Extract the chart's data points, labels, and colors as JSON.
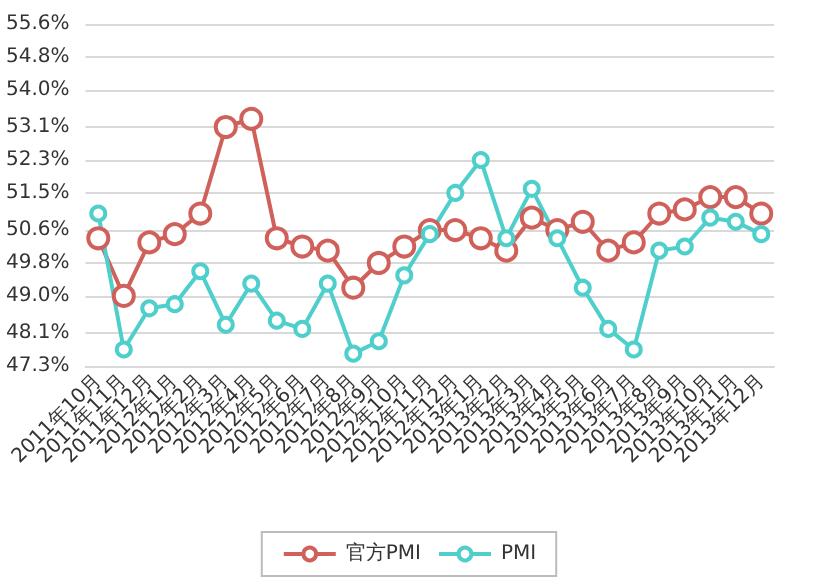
{
  "chart_data": {
    "type": "line",
    "categories": [
      "2011年10月",
      "2011年11月",
      "2011年12月",
      "2012年1月",
      "2012年2月",
      "2012年3月",
      "2012年4月",
      "2012年5月",
      "2012年6月",
      "2012年7月",
      "2012年8月",
      "2012年9月",
      "2012年10月",
      "2012年11月",
      "2012年12月",
      "2013年1月",
      "2013年2月",
      "2013年3月",
      "2013年4月",
      "2013年5月",
      "2013年6月",
      "2013年7月",
      "2013年8月",
      "2013年9月",
      "2013年10月",
      "2013年11月",
      "2013年12月"
    ],
    "series": [
      {
        "name": "官方PMI",
        "color": "#d0605a",
        "values": [
          50.4,
          49.0,
          50.3,
          50.5,
          51.0,
          53.1,
          53.3,
          50.4,
          50.2,
          50.1,
          49.2,
          49.8,
          50.2,
          50.6,
          50.6,
          50.4,
          50.1,
          50.9,
          50.6,
          50.8,
          50.1,
          50.3,
          51.0,
          51.1,
          51.4,
          51.4,
          51.0
        ]
      },
      {
        "name": "PMI",
        "color": "#4fcfcb",
        "values": [
          51.0,
          47.7,
          48.7,
          48.8,
          49.6,
          48.3,
          49.3,
          48.4,
          48.2,
          49.3,
          47.6,
          47.9,
          49.5,
          50.5,
          51.5,
          52.3,
          50.4,
          51.6,
          50.4,
          49.2,
          48.2,
          47.7,
          50.1,
          50.2,
          50.9,
          50.8,
          50.5
        ]
      }
    ],
    "ylim": [
      47.3,
      55.6
    ],
    "yticks": [
      {
        "value": 47.3,
        "label": "47.3%"
      },
      {
        "value": 48.1,
        "label": "48.1%"
      },
      {
        "value": 49.0,
        "label": "49.0%"
      },
      {
        "value": 49.8,
        "label": "49.8%"
      },
      {
        "value": 50.6,
        "label": "50.6%"
      },
      {
        "value": 51.5,
        "label": "51.5%"
      },
      {
        "value": 52.3,
        "label": "52.3%"
      },
      {
        "value": 53.1,
        "label": "53.1%"
      },
      {
        "value": 54.0,
        "label": "54.0%"
      },
      {
        "value": 54.8,
        "label": "54.8%"
      },
      {
        "value": 55.6,
        "label": "55.6%"
      }
    ],
    "grid": "y",
    "legend": "bottom",
    "marker": "circle",
    "line_style": "solid"
  }
}
